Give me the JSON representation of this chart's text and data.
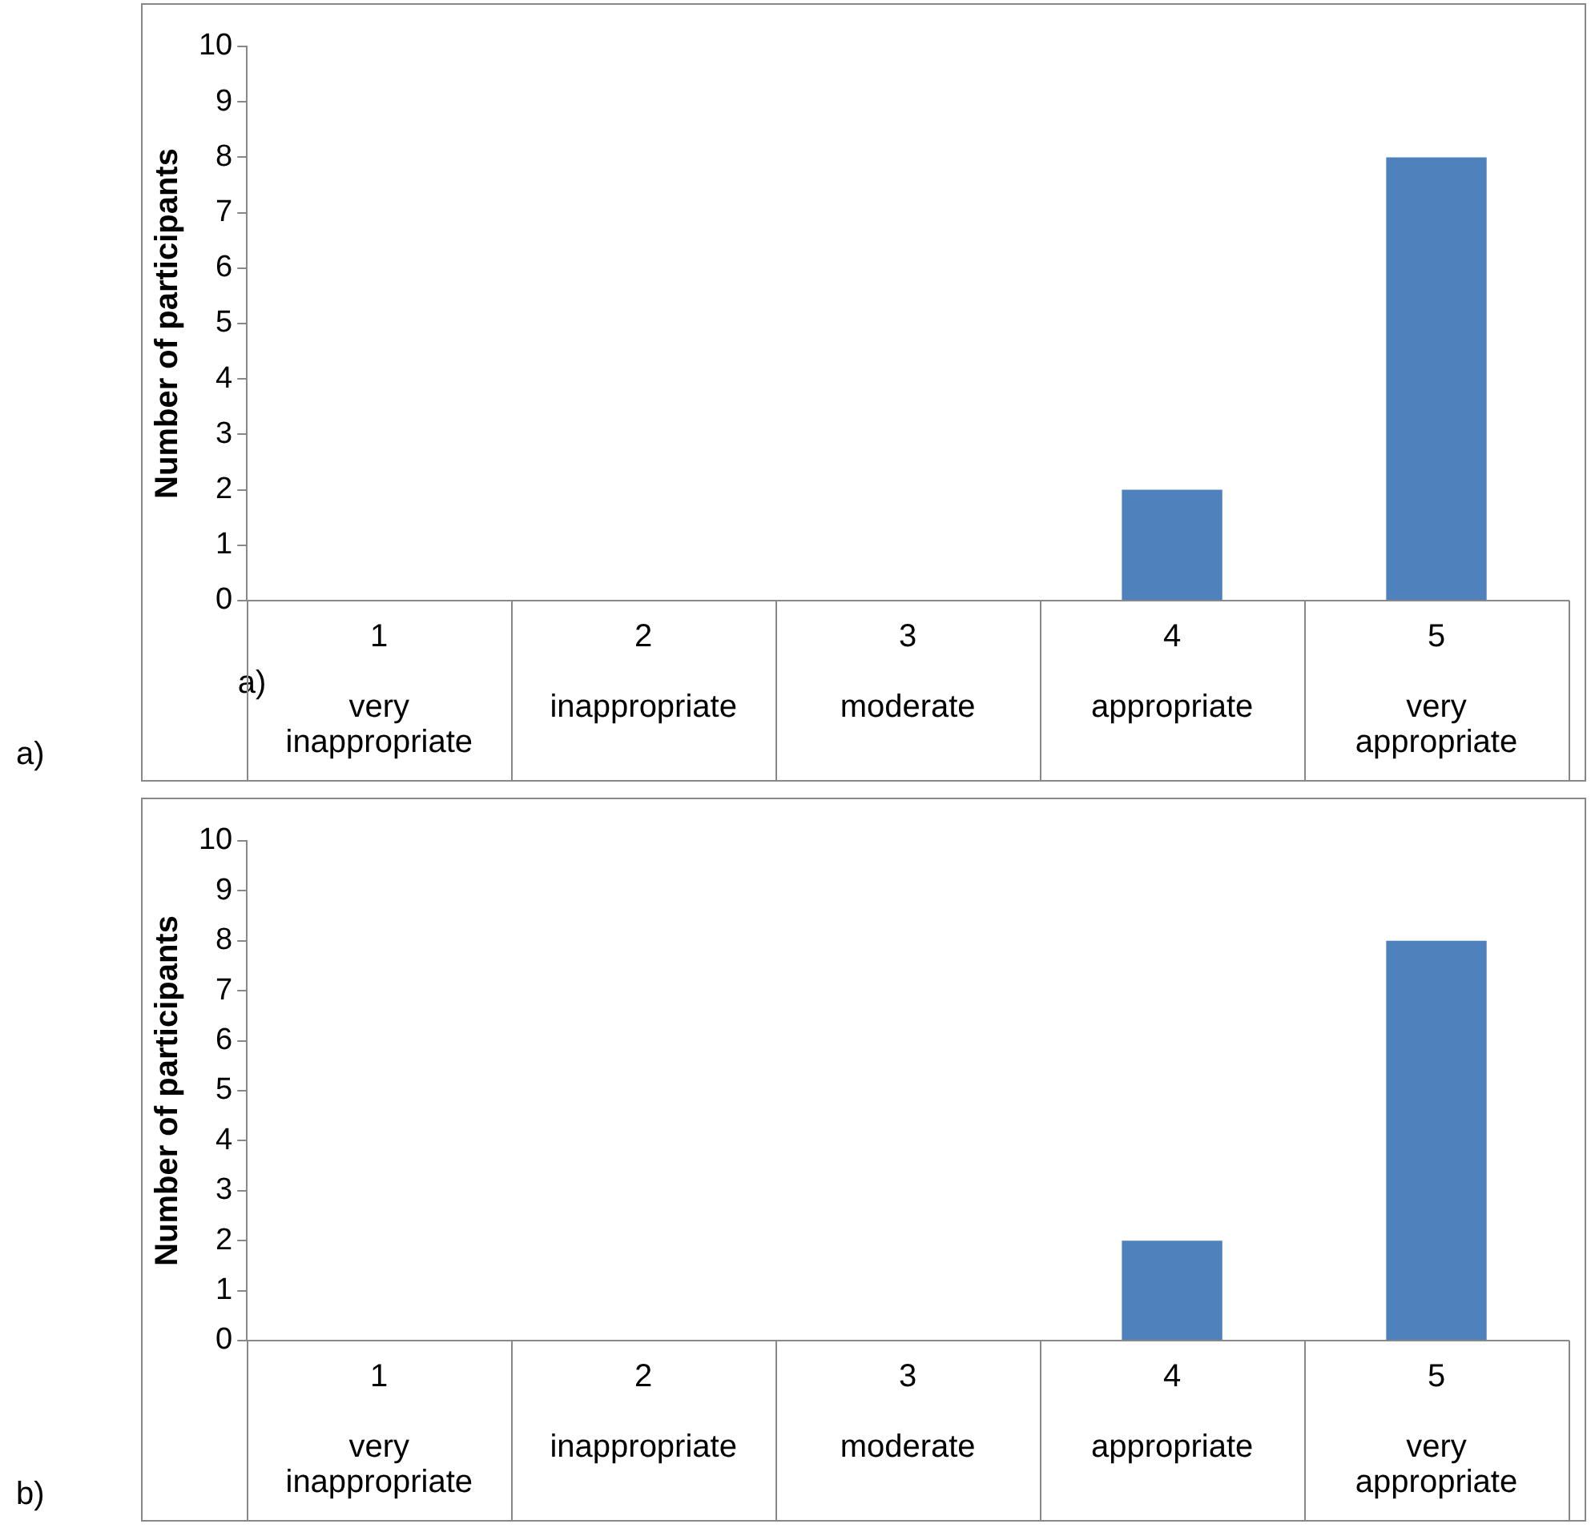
{
  "chart_data": [
    {
      "type": "bar",
      "ylabel": "Number of participants",
      "categories": [
        "1\nvery inappropriate",
        "2\ninappropriate",
        "3\nmoderate",
        "4\nappropriate",
        "5\nvery appropriate"
      ],
      "values": [
        0,
        0,
        0,
        2,
        8
      ],
      "color": "#4f81bd",
      "ylim": [
        0,
        10
      ],
      "yticks": [
        0,
        1,
        2,
        3,
        4,
        5,
        6,
        7,
        8,
        9,
        10
      ],
      "grid": false,
      "legend": false,
      "annotations": [
        "a)",
        "a)"
      ]
    },
    {
      "type": "bar",
      "ylabel": "Number of participants",
      "categories": [
        "1\nvery inappropriate",
        "2\ninappropriate",
        "3\nmoderate",
        "4\nappropriate",
        "5\nvery appropriate"
      ],
      "values": [
        0,
        0,
        0,
        2,
        8
      ],
      "color": "#4f81bd",
      "ylim": [
        0,
        10
      ],
      "yticks": [
        0,
        1,
        2,
        3,
        4,
        5,
        6,
        7,
        8,
        9,
        10
      ],
      "grid": false,
      "legend": false,
      "annotations": [
        "b)"
      ]
    }
  ]
}
